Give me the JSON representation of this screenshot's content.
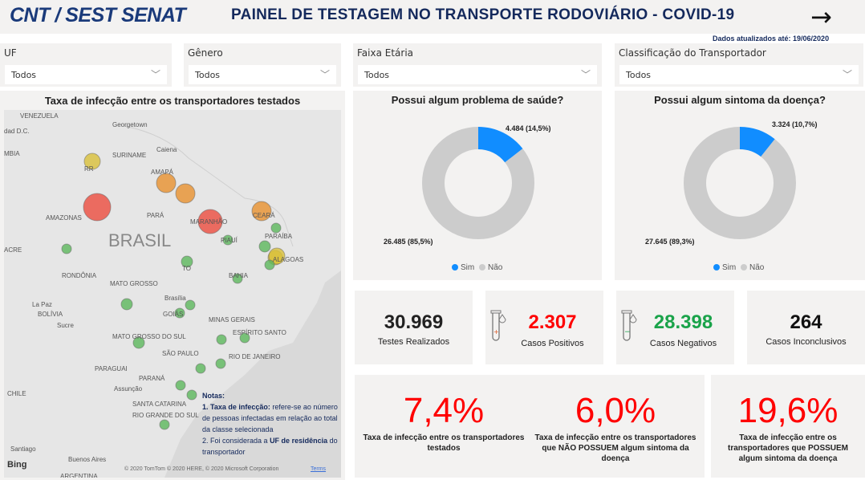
{
  "header": {
    "logo": "CNT / SEST SENAT",
    "title": "PAINEL DE TESTAGEM NO TRANSPORTE RODOVIÁRIO - COVID-19",
    "updated": "Dados atualizados até: 19/06/2020",
    "next_icon": "arrow-right-icon"
  },
  "filters": [
    {
      "label": "UF",
      "value": "Todos"
    },
    {
      "label": "Gênero",
      "value": "Todos"
    },
    {
      "label": "Faixa Etária",
      "value": "Todos"
    },
    {
      "label": "Classificação do Transportador",
      "value": "Todos"
    }
  ],
  "map": {
    "title": "Taxa de infecção entre os transportadores testados",
    "labels": [
      "VENEZUELA",
      "Georgetown",
      "Caiena",
      "SURINAME",
      "AMAPÁ",
      "RR",
      "AMAZONAS",
      "PARÁ",
      "MARANHÃO",
      "CEARÁ",
      "BRASIL",
      "PIAUÍ",
      "PARAÍBA",
      "ALAGOAS",
      "ACRE",
      "RONDÔNIA",
      "TO",
      "BAHIA",
      "MATO GROSSO",
      "Brasília",
      "GOIÁS",
      "MINAS GERAIS",
      "La Paz",
      "BOLÍVIA",
      "Sucre",
      "MATO GROSSO DO SUL",
      "ESPÍRITO SANTO",
      "SÃO PAULO",
      "RIO DE JANEIRO",
      "PARAGUAI",
      "PARANÁ",
      "Assunção",
      "SANTA CATARINA",
      "RIO GRANDE DO SUL",
      "CHILE",
      "Santiago",
      "Buenos Aires",
      "ARGENTINA",
      "dad D.C.",
      "MBIA",
      "UF"
    ],
    "notes": {
      "heading": "Notas:",
      "n1_bold": "1. Taxa de infecção:",
      "n1_text": " refere-se ao número de pessoas infectadas em relação ao total da classe selecionada",
      "n2_text": "2. Foi considerada a ",
      "n2_bold": "UF de residência",
      "n2_end": " do transportador"
    },
    "attribution": "© 2020 TomTom © 2020 HERE, © 2020 Microsoft Corporation",
    "terms": "Terms",
    "bing": "Bing",
    "colors": {
      "low": "#5cb85c",
      "mid": "#d9c13a",
      "high": "#e8912e",
      "veryhigh": "#ec4c3f"
    }
  },
  "donut1": {
    "title": "Possui algum problema de saúde?",
    "sim_label": "4.484 (14,5%)",
    "nao_label": "26.485 (85,5%)",
    "sim_pct": 14.5,
    "legend": [
      "Sim",
      "Não"
    ]
  },
  "donut2": {
    "title": "Possui algum sintoma da doença?",
    "sim_label": "3.324 (10,7%)",
    "nao_label": "27.645 (89,3%)",
    "sim_pct": 10.7,
    "legend": [
      "Sim",
      "Não"
    ]
  },
  "colors": {
    "sim": "#118dff",
    "nao": "#cccccc",
    "positive": "#ff0000",
    "negative": "#1aa34a"
  },
  "kpis": [
    {
      "value": "30.969",
      "caption": "Testes Realizados"
    },
    {
      "value": "2.307",
      "caption": "Casos Positivos",
      "icon": "test-tube-positive-icon"
    },
    {
      "value": "28.398",
      "caption": "Casos Negativos",
      "icon": "test-tube-negative-icon"
    },
    {
      "value": "264",
      "caption": "Casos Inconclusivos"
    }
  ],
  "rates": [
    {
      "value": "7,4%",
      "caption": "Taxa de infecção entre os transportadores testados"
    },
    {
      "value": "6,0%",
      "caption": "Taxa de infecção entre os transportadores que NÃO POSSUEM algum sintoma da doença"
    },
    {
      "value": "19,6%",
      "caption": "Taxa de infecção entre os transportadores que POSSUEM algum sintoma da doença"
    }
  ]
}
